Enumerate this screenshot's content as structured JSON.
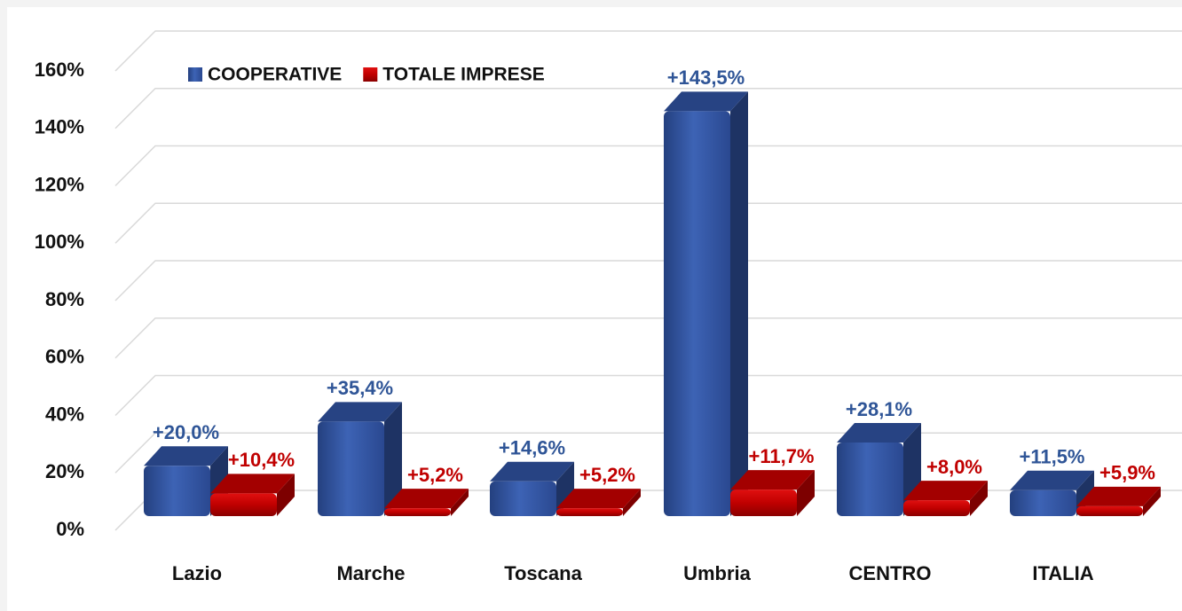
{
  "chart_data": {
    "type": "bar3d",
    "categories": [
      "Lazio",
      "Marche",
      "Toscana",
      "Umbria",
      "CENTRO",
      "ITALIA"
    ],
    "series": [
      {
        "name": "COOPERATIVE",
        "color": "#2e4f9a",
        "label_color": "#2f5597",
        "values": [
          20.0,
          35.4,
          14.6,
          143.5,
          28.1,
          11.5
        ],
        "value_labels": [
          "+20,0%",
          "+35,4%",
          "+14,6%",
          "+143,5%",
          "+28,1%",
          "+11,5%"
        ]
      },
      {
        "name": "TOTALE IMPRESE",
        "color": "#c00000",
        "label_color": "#c00000",
        "values": [
          10.4,
          5.2,
          5.2,
          11.7,
          8.0,
          5.9
        ],
        "value_labels": [
          "+10,4%",
          "+5,2%",
          "+5,2%",
          "+11,7%",
          "+8,0%",
          "+5,9%"
        ]
      }
    ],
    "ylim": [
      0,
      160
    ],
    "yticks": [
      {
        "value": 0,
        "label": "0%"
      },
      {
        "value": 20,
        "label": "20%"
      },
      {
        "value": 40,
        "label": "40%"
      },
      {
        "value": 60,
        "label": "60%"
      },
      {
        "value": 80,
        "label": "80%"
      },
      {
        "value": 100,
        "label": "100%"
      },
      {
        "value": 120,
        "label": "120%"
      },
      {
        "value": 140,
        "label": "140%"
      },
      {
        "value": 160,
        "label": "160%"
      }
    ],
    "grid": true,
    "legend": "top-left"
  }
}
